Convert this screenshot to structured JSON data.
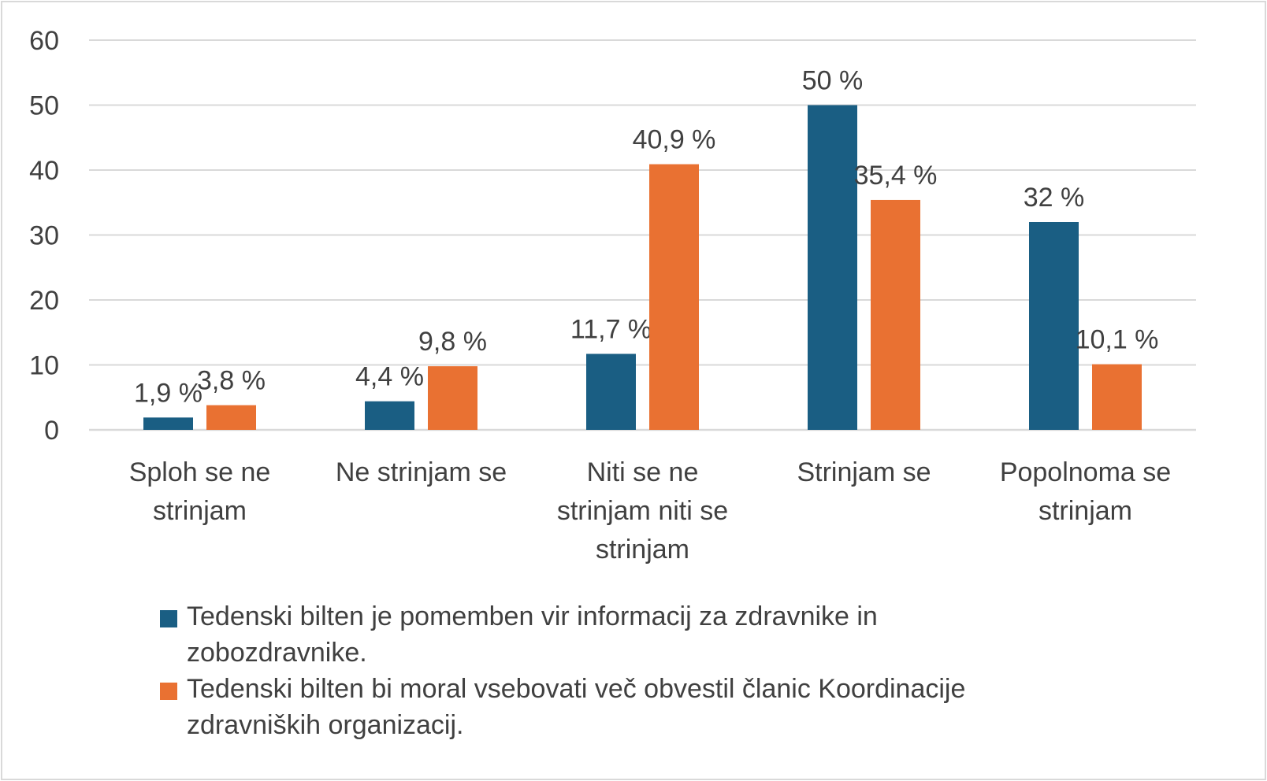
{
  "chart_data": {
    "type": "bar",
    "categories": [
      [
        "Sploh se ne",
        "strinjam"
      ],
      [
        "Ne strinjam se"
      ],
      [
        "Niti se ne",
        "strinjam niti se",
        "strinjam"
      ],
      [
        "Strinjam se"
      ],
      [
        "Popolnoma se",
        "strinjam"
      ]
    ],
    "series": [
      {
        "name": "Tedenski bilten je pomemben vir informacij za zdravnike in zobozdravnike.",
        "name_lines": [
          "Tedenski bilten je pomemben vir informacij za zdravnike in",
          "zobozdravnike."
        ],
        "color": "#1a5e83",
        "values": [
          1.9,
          4.4,
          11.7,
          50,
          32
        ],
        "labels": [
          "1,9 %",
          "4,4 %",
          "11,7 %",
          "50 %",
          "32 %"
        ]
      },
      {
        "name": "Tedenski bilten bi moral vsebovati več obvestil članic Koordinacije zdravniških organizacij.",
        "name_lines": [
          "Tedenski bilten bi moral vsebovati več obvestil članic Koordinacije",
          "zdravniških organizacij."
        ],
        "color": "#e97132",
        "values": [
          3.8,
          9.8,
          40.9,
          35.4,
          10.1
        ],
        "labels": [
          "3,8 %",
          "9,8 %",
          "40,9 %",
          "35,4 %",
          "10,1 %"
        ]
      }
    ],
    "ylim": [
      0,
      60
    ],
    "yticks": [
      "0",
      "10",
      "20",
      "30",
      "40",
      "50",
      "60"
    ],
    "grid": true,
    "gridColor": "#d9d9d9",
    "legend": "bottom"
  }
}
